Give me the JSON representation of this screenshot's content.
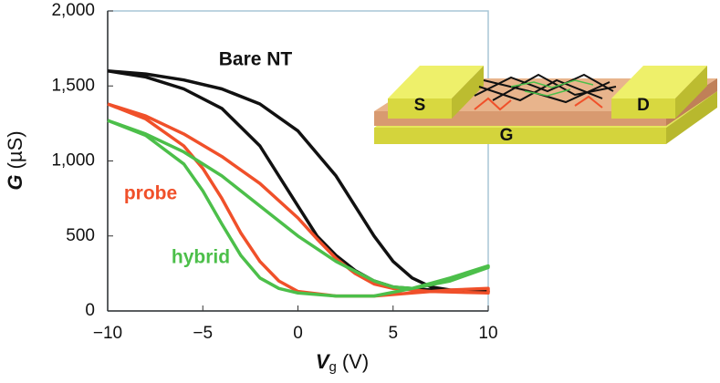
{
  "chart_data": {
    "type": "line",
    "x_label": {
      "symbol": "V",
      "subscript": "g",
      "unit": "(V)"
    },
    "y_label": {
      "symbol": "G",
      "unit": "(µS)"
    },
    "xlim": [
      -10,
      10
    ],
    "xticks": [
      {
        "value": -10,
        "label": "−10"
      },
      {
        "value": -5,
        "label": "−5"
      },
      0,
      5,
      10
    ],
    "ylim": [
      0,
      2000
    ],
    "yticks": [
      0,
      500,
      {
        "value": 1000,
        "label": "1,000"
      },
      {
        "value": 1500,
        "label": "1,500"
      },
      {
        "value": 2000,
        "label": "2,000"
      }
    ],
    "series": [
      {
        "name": "Bare NT",
        "color": "#111111",
        "x": [
          -10,
          -8,
          -6,
          -4,
          -2,
          0,
          2,
          3,
          4,
          5,
          6,
          7,
          8,
          10,
          10,
          7,
          5,
          4,
          3,
          2,
          1,
          0,
          -1,
          -2,
          -4,
          -6,
          -8,
          -10
        ],
        "values": [
          1600,
          1580,
          1540,
          1480,
          1380,
          1200,
          900,
          700,
          500,
          330,
          220,
          160,
          140,
          130,
          130,
          140,
          160,
          200,
          270,
          370,
          500,
          700,
          900,
          1100,
          1350,
          1480,
          1560,
          1600
        ]
      },
      {
        "name": "probe",
        "color": "#f0502a",
        "x": [
          -10,
          -8,
          -6,
          -4,
          -2,
          0,
          1,
          2,
          3,
          4,
          5,
          7,
          10,
          10,
          8,
          6,
          4,
          2,
          0,
          -1,
          -2,
          -3,
          -4,
          -5,
          -6,
          -8,
          -10
        ],
        "values": [
          1380,
          1300,
          1180,
          1030,
          850,
          620,
          480,
          350,
          250,
          180,
          150,
          130,
          120,
          150,
          140,
          120,
          100,
          100,
          130,
          200,
          330,
          520,
          750,
          950,
          1100,
          1280,
          1380
        ]
      },
      {
        "name": "hybrid",
        "color": "#4cbf4a",
        "x": [
          -10,
          -8,
          -6,
          -4,
          -2,
          0,
          2,
          4,
          5,
          6,
          8,
          10,
          10,
          8,
          6,
          4,
          2,
          0,
          -1,
          -2,
          -3,
          -4,
          -5,
          -6,
          -8,
          -10
        ],
        "values": [
          1270,
          1180,
          1060,
          900,
          700,
          500,
          330,
          200,
          160,
          150,
          200,
          290,
          300,
          220,
          150,
          100,
          100,
          120,
          150,
          220,
          370,
          580,
          800,
          980,
          1170,
          1270
        ]
      }
    ]
  },
  "inset": {
    "source": "S",
    "drain": "D",
    "gate": "G"
  }
}
